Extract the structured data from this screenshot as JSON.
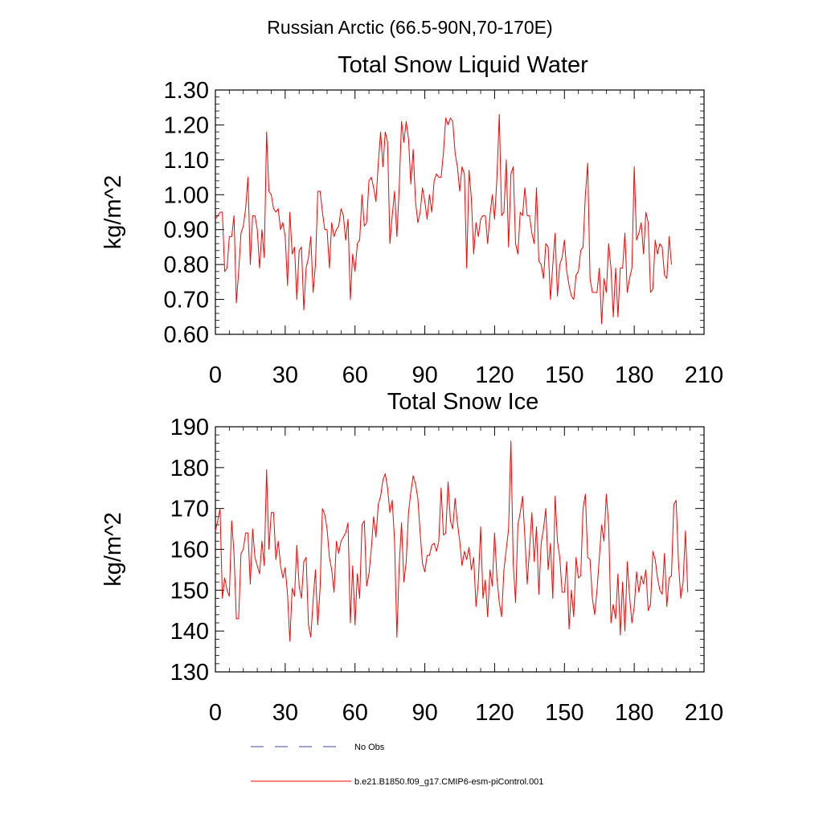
{
  "suptitle": "Russian Arctic (66.5-90N,70-170E)",
  "colors": {
    "series": "#ff0000",
    "obs": "#3a4a9a",
    "axis": "#000000"
  },
  "legend": [
    {
      "label": "No Obs",
      "style": "dashed",
      "color": "#3a4a9a"
    },
    {
      "label": "b.e21.B1850.f09_g17.CMIP6-esm-piControl.001",
      "style": "solid",
      "color": "#ff0000"
    }
  ],
  "chart_data": [
    {
      "type": "line",
      "title": "Total Snow Liquid Water",
      "ylabel": "kg/m^2",
      "xlabel": "",
      "xlim": [
        0,
        210
      ],
      "ylim": [
        0.6,
        1.3
      ],
      "xticks": [
        "0",
        "30",
        "60",
        "90",
        "120",
        "150",
        "180",
        "210"
      ],
      "yticks": [
        "0.60",
        "0.70",
        "0.80",
        "0.90",
        "1.00",
        "1.10",
        "1.20",
        "1.30"
      ],
      "grid": false,
      "series": [
        {
          "name": "b.e21.B1850.f09_g17.CMIP6-esm-piControl.001",
          "x_start": 0,
          "values": [
            0.93,
            0.94,
            0.95,
            0.95,
            0.78,
            0.79,
            0.88,
            0.88,
            0.94,
            0.69,
            0.78,
            0.89,
            0.91,
            0.96,
            1.05,
            0.8,
            0.94,
            0.94,
            0.9,
            0.79,
            0.9,
            0.82,
            1.18,
            1.01,
            1.0,
            0.96,
            0.95,
            0.96,
            0.9,
            0.92,
            0.88,
            0.74,
            0.95,
            0.83,
            0.85,
            0.7,
            0.84,
            0.85,
            0.67,
            0.79,
            0.82,
            0.88,
            0.72,
            0.8,
            1.01,
            1.01,
            0.95,
            0.9,
            0.9,
            0.79,
            0.92,
            0.88,
            0.9,
            0.91,
            0.96,
            0.94,
            0.87,
            0.93,
            0.7,
            0.83,
            0.78,
            0.86,
            0.87,
            1.0,
            0.91,
            0.92,
            1.04,
            1.05,
            1.02,
            0.98,
            1.09,
            1.18,
            1.08,
            1.18,
            1.15,
            0.86,
            0.94,
            1.01,
            0.88,
            1.02,
            1.21,
            1.15,
            1.21,
            1.16,
            1.03,
            1.13,
            0.98,
            0.92,
            0.95,
            1.02,
            0.98,
            0.93,
            1.0,
            0.95,
            1.04,
            1.06,
            1.05,
            1.05,
            1.12,
            1.22,
            1.2,
            1.22,
            1.21,
            1.12,
            1.08,
            1.01,
            1.08,
            1.06,
            0.79,
            1.07,
            0.99,
            0.83,
            0.92,
            0.88,
            0.93,
            0.94,
            0.94,
            0.86,
            0.94,
            1.0,
            0.93,
            1.05,
            1.23,
            0.94,
            0.95,
            1.1,
            0.85,
            1.06,
            1.08,
            0.86,
            0.83,
            0.95,
            0.94,
            1.02,
            0.94,
            0.94,
            0.89,
            0.86,
            1.02,
            0.81,
            0.8,
            0.76,
            0.86,
            0.85,
            0.7,
            0.8,
            0.89,
            0.71,
            0.8,
            0.82,
            0.87,
            0.78,
            0.74,
            0.71,
            0.7,
            0.77,
            0.78,
            0.84,
            0.85,
            1.0,
            1.09,
            0.76,
            0.72,
            0.72,
            0.72,
            0.79,
            0.63,
            0.76,
            0.72,
            0.86,
            0.79,
            0.65,
            0.79,
            0.65,
            0.79,
            0.79,
            0.89,
            0.72,
            0.76,
            0.79,
            1.08,
            0.87,
            0.89,
            0.92,
            0.83,
            0.95,
            0.92,
            0.72,
            0.73,
            0.87,
            0.83,
            0.86,
            0.85,
            0.77,
            0.76,
            0.88,
            0.8
          ]
        }
      ]
    },
    {
      "type": "line",
      "title": "Total Snow Ice",
      "ylabel": "kg/m^2",
      "xlabel": "",
      "xlim": [
        0,
        210
      ],
      "ylim": [
        130,
        190
      ],
      "xticks": [
        "0",
        "30",
        "60",
        "90",
        "120",
        "150",
        "180",
        "210"
      ],
      "yticks": [
        "130",
        "140",
        "150",
        "160",
        "170",
        "180",
        "190"
      ],
      "grid": false,
      "series": [
        {
          "name": "b.e21.B1850.f09_g17.CMIP6-esm-piControl.001",
          "x_start": 0,
          "values": [
            164.5,
            167,
            170,
            148,
            153,
            150,
            148.5,
            167,
            159,
            143,
            143,
            159,
            160,
            164,
            164,
            151.5,
            165,
            158,
            156,
            154,
            162,
            156,
            179.5,
            160,
            169,
            169,
            157.5,
            162,
            156,
            153,
            155.5,
            149,
            137.5,
            150.5,
            148.5,
            161,
            151,
            148,
            157,
            158,
            141.5,
            138.5,
            147.5,
            155,
            141.5,
            150.5,
            170,
            168.5,
            165,
            158,
            155,
            149.5,
            162,
            159,
            162,
            163,
            164,
            166.5,
            142,
            156,
            141.5,
            154,
            148,
            166,
            167,
            151,
            154,
            160,
            168,
            163,
            171,
            173,
            177,
            178.5,
            175,
            169,
            172,
            162,
            138.5,
            156,
            166.5,
            152,
            157,
            169,
            174,
            178,
            176,
            172.5,
            164,
            156.5,
            154.5,
            158.5,
            158.5,
            161,
            161.5,
            159.5,
            162,
            175,
            163.5,
            164,
            176.5,
            167,
            165,
            172.5,
            166.5,
            162,
            156,
            159.5,
            157.5,
            160.5,
            155,
            158,
            146,
            152,
            165.5,
            148,
            152.5,
            143.5,
            155,
            151,
            164,
            153,
            147,
            143.5,
            155,
            160,
            165,
            186.5,
            156.5,
            147,
            166,
            169,
            173,
            163,
            151.5,
            160,
            169,
            157,
            165.5,
            149,
            161.5,
            165,
            170,
            155,
            161.5,
            148,
            173,
            162,
            158,
            149.5,
            149.5,
            157,
            140.5,
            150,
            143.5,
            158,
            153,
            153.5,
            170,
            173.5,
            158,
            157.5,
            148,
            144,
            150,
            158,
            166,
            162,
            173.5,
            166,
            142,
            146.5,
            143,
            154,
            139,
            152,
            140,
            157,
            148.5,
            142,
            146,
            154.5,
            149.5,
            153.5,
            151.5,
            155,
            145,
            146.5,
            159.5,
            157.5,
            153,
            150,
            149,
            159,
            146,
            153,
            153.5,
            171,
            172,
            157,
            148,
            152,
            164.5,
            149.5
          ]
        }
      ]
    }
  ]
}
